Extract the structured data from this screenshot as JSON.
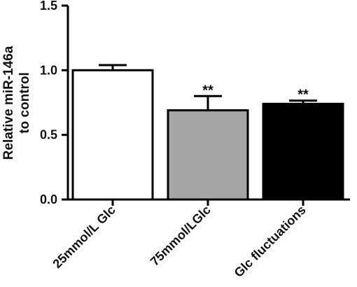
{
  "chart_data": {
    "type": "bar",
    "categories": [
      "25mmol/L Glc",
      "75mmol/LGlc",
      "Glc fluctuations"
    ],
    "values": [
      1.0,
      0.69,
      0.74
    ],
    "errors": [
      0.04,
      0.11,
      0.025
    ],
    "significance": [
      "",
      "**",
      "**"
    ],
    "ylabel_lines": [
      "Relative miR-146a",
      "to control"
    ],
    "ylim": [
      0.0,
      1.5
    ],
    "yticks": [
      "0.0",
      "0.5",
      "1.0",
      "1.5"
    ],
    "bar_colors": [
      "#ffffff",
      "#a6a6a6",
      "#000000"
    ],
    "edge_color": "#000000",
    "grid": false
  }
}
